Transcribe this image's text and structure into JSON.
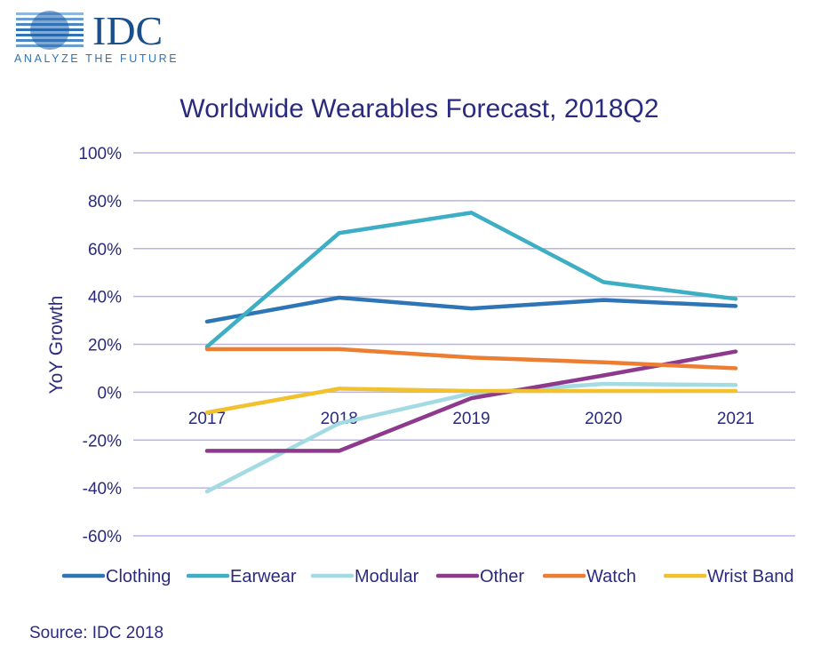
{
  "logo": {
    "brand": "IDC",
    "tagline": "ANALYZE THE FUTURE"
  },
  "source": "Source: IDC 2018",
  "chart_data": {
    "type": "line",
    "title": "Worldwide Wearables Forecast, 2018Q2",
    "xlabel": "",
    "ylabel": "YoY Growth",
    "x": [
      "2017",
      "2018",
      "2019",
      "2020",
      "2021"
    ],
    "ylim": [
      -60,
      100
    ],
    "yticks": [
      100,
      80,
      60,
      40,
      20,
      0,
      -20,
      -40,
      -60
    ],
    "ytick_labels": [
      "100%",
      "80%",
      "60%",
      "40%",
      "20%",
      "0%",
      "-20%",
      "-40%",
      "-60%"
    ],
    "grid": true,
    "legend_position": "bottom",
    "series": [
      {
        "name": "Clothing",
        "color": "#2e75b6",
        "values": [
          29.5,
          39.5,
          35,
          38.5,
          36
        ]
      },
      {
        "name": "Earwear",
        "color": "#3daec4",
        "values": [
          19,
          66.5,
          75,
          46,
          39
        ]
      },
      {
        "name": "Modular",
        "color": "#a3dbe3",
        "values": [
          -41.5,
          -13,
          -0.5,
          3.5,
          3
        ]
      },
      {
        "name": "Other",
        "color": "#8e3a8c",
        "values": [
          -24.5,
          -24.5,
          -2.5,
          7,
          17
        ]
      },
      {
        "name": "Watch",
        "color": "#ed7d31",
        "values": [
          18,
          18,
          14.5,
          12.5,
          10
        ]
      },
      {
        "name": "Wrist Band",
        "color": "#f2c12e",
        "values": [
          -8.5,
          1.5,
          0.5,
          0.5,
          0.5
        ]
      }
    ]
  }
}
